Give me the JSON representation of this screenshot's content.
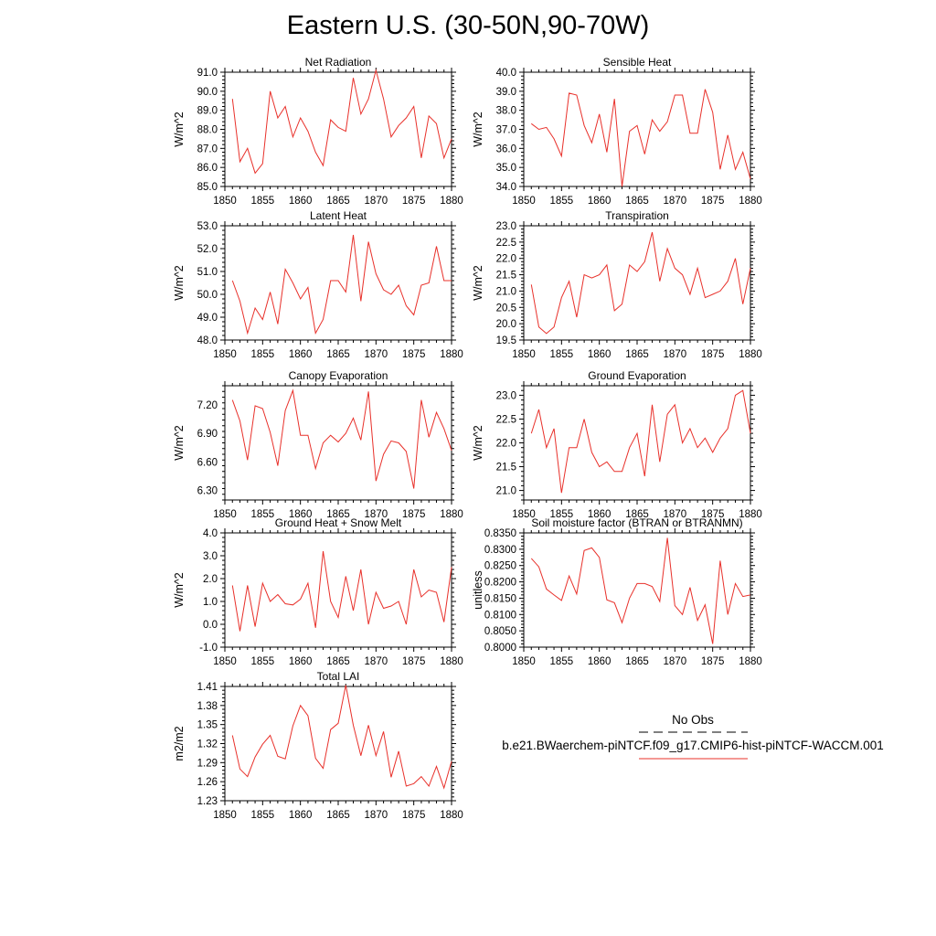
{
  "title": "Eastern U.S. (30-50N,90-70W)",
  "legend": {
    "obs_label": "No Obs",
    "model_label": "b.e21.BWaerchem-piNTCF.f09_g17.CMIP6-hist-piNTCF-WACCM.001",
    "model_color": "#e8302a",
    "obs_color": "#000000"
  },
  "chart_data": [
    {
      "type": "line",
      "title": "Net Radiation",
      "ylabel": "W/m^2",
      "x": [
        1851,
        1852,
        1853,
        1854,
        1855,
        1856,
        1857,
        1858,
        1859,
        1860,
        1861,
        1862,
        1863,
        1864,
        1865,
        1866,
        1867,
        1868,
        1869,
        1870,
        1871,
        1872,
        1873,
        1874,
        1875,
        1876,
        1877,
        1878,
        1879,
        1880
      ],
      "xlim": [
        1850,
        1880
      ],
      "xticks": [
        1850,
        1855,
        1860,
        1865,
        1870,
        1875,
        1880
      ],
      "ylim": [
        85.0,
        91.0
      ],
      "yticks": [
        "85.0",
        "86.0",
        "87.0",
        "88.0",
        "89.0",
        "90.0",
        "91.0"
      ],
      "series": [
        {
          "values": [
            89.6,
            86.3,
            87.0,
            85.7,
            86.2,
            90.0,
            88.6,
            89.2,
            87.6,
            88.6,
            87.9,
            86.8,
            86.1,
            88.5,
            88.1,
            87.9,
            90.7,
            88.8,
            89.6,
            91.1,
            89.6,
            87.6,
            88.2,
            88.6,
            89.2,
            86.5,
            88.7,
            88.3,
            86.5,
            87.5
          ]
        }
      ]
    },
    {
      "type": "line",
      "title": "Sensible Heat",
      "ylabel": "W/m^2",
      "x": [
        1851,
        1852,
        1853,
        1854,
        1855,
        1856,
        1857,
        1858,
        1859,
        1860,
        1861,
        1862,
        1863,
        1864,
        1865,
        1866,
        1867,
        1868,
        1869,
        1870,
        1871,
        1872,
        1873,
        1874,
        1875,
        1876,
        1877,
        1878,
        1879,
        1880
      ],
      "xlim": [
        1850,
        1880
      ],
      "xticks": [
        1850,
        1855,
        1860,
        1865,
        1870,
        1875,
        1880
      ],
      "ylim": [
        34.0,
        40.0
      ],
      "yticks": [
        "34.0",
        "35.0",
        "36.0",
        "37.0",
        "38.0",
        "39.0",
        "40.0"
      ],
      "series": [
        {
          "values": [
            37.3,
            37.0,
            37.1,
            36.5,
            35.6,
            38.9,
            38.8,
            37.2,
            36.3,
            37.8,
            35.8,
            38.6,
            34.0,
            36.9,
            37.2,
            35.7,
            37.5,
            36.9,
            37.4,
            38.8,
            38.8,
            36.8,
            36.8,
            39.1,
            37.9,
            34.9,
            36.7,
            34.9,
            35.8,
            34.4
          ]
        }
      ]
    },
    {
      "type": "line",
      "title": "Latent Heat",
      "ylabel": "W/m^2",
      "x": [
        1851,
        1852,
        1853,
        1854,
        1855,
        1856,
        1857,
        1858,
        1859,
        1860,
        1861,
        1862,
        1863,
        1864,
        1865,
        1866,
        1867,
        1868,
        1869,
        1870,
        1871,
        1872,
        1873,
        1874,
        1875,
        1876,
        1877,
        1878,
        1879,
        1880
      ],
      "xlim": [
        1850,
        1880
      ],
      "xticks": [
        1850,
        1855,
        1860,
        1865,
        1870,
        1875,
        1880
      ],
      "ylim": [
        48.0,
        53.0
      ],
      "yticks": [
        "48.0",
        "49.0",
        "50.0",
        "51.0",
        "52.0",
        "53.0"
      ],
      "series": [
        {
          "values": [
            50.6,
            49.7,
            48.3,
            49.4,
            48.9,
            50.1,
            48.7,
            51.1,
            50.5,
            49.8,
            50.3,
            48.3,
            48.9,
            50.6,
            50.6,
            50.1,
            52.6,
            49.7,
            52.3,
            50.9,
            50.2,
            50.0,
            50.4,
            49.5,
            49.1,
            50.4,
            50.5,
            52.1,
            50.6,
            50.6
          ]
        }
      ]
    },
    {
      "type": "line",
      "title": "Transpiration",
      "ylabel": "W/m^2",
      "x": [
        1851,
        1852,
        1853,
        1854,
        1855,
        1856,
        1857,
        1858,
        1859,
        1860,
        1861,
        1862,
        1863,
        1864,
        1865,
        1866,
        1867,
        1868,
        1869,
        1870,
        1871,
        1872,
        1873,
        1874,
        1875,
        1876,
        1877,
        1878,
        1879,
        1880
      ],
      "xlim": [
        1850,
        1880
      ],
      "xticks": [
        1850,
        1855,
        1860,
        1865,
        1870,
        1875,
        1880
      ],
      "ylim": [
        19.5,
        23.0
      ],
      "yticks": [
        "19.5",
        "20.0",
        "20.5",
        "21.0",
        "21.5",
        "22.0",
        "22.5",
        "23.0"
      ],
      "series": [
        {
          "values": [
            21.2,
            19.9,
            19.7,
            19.9,
            20.8,
            21.3,
            20.2,
            21.5,
            21.4,
            21.5,
            21.8,
            20.4,
            20.6,
            21.8,
            21.6,
            21.9,
            22.8,
            21.3,
            22.3,
            21.7,
            21.5,
            20.9,
            21.7,
            20.8,
            20.9,
            21.0,
            21.3,
            22.0,
            20.6,
            21.7
          ]
        }
      ]
    },
    {
      "type": "line",
      "title": "Canopy Evaporation",
      "ylabel": "W/m^2",
      "x": [
        1851,
        1852,
        1853,
        1854,
        1855,
        1856,
        1857,
        1858,
        1859,
        1860,
        1861,
        1862,
        1863,
        1864,
        1865,
        1866,
        1867,
        1868,
        1869,
        1870,
        1871,
        1872,
        1873,
        1874,
        1875,
        1876,
        1877,
        1878,
        1879,
        1880
      ],
      "xlim": [
        1850,
        1880
      ],
      "xticks": [
        1850,
        1855,
        1860,
        1865,
        1870,
        1875,
        1880
      ],
      "ylim": [
        6.2,
        7.4
      ],
      "yticks": [
        "6.30",
        "6.60",
        "6.90",
        "7.20"
      ],
      "series": [
        {
          "values": [
            7.25,
            7.03,
            6.62,
            7.19,
            7.16,
            6.91,
            6.56,
            7.14,
            7.35,
            6.88,
            6.88,
            6.53,
            6.8,
            6.88,
            6.81,
            6.9,
            7.06,
            6.83,
            7.34,
            6.4,
            6.68,
            6.82,
            6.8,
            6.71,
            6.32,
            7.25,
            6.86,
            7.12,
            6.95,
            6.72
          ]
        }
      ]
    },
    {
      "type": "line",
      "title": "Ground Evaporation",
      "ylabel": "W/m^2",
      "x": [
        1851,
        1852,
        1853,
        1854,
        1855,
        1856,
        1857,
        1858,
        1859,
        1860,
        1861,
        1862,
        1863,
        1864,
        1865,
        1866,
        1867,
        1868,
        1869,
        1870,
        1871,
        1872,
        1873,
        1874,
        1875,
        1876,
        1877,
        1878,
        1879,
        1880
      ],
      "xlim": [
        1850,
        1880
      ],
      "xticks": [
        1850,
        1855,
        1860,
        1865,
        1870,
        1875,
        1880
      ],
      "ylim": [
        20.8,
        23.2
      ],
      "yticks": [
        "21.0",
        "21.5",
        "22.0",
        "22.5",
        "23.0"
      ],
      "series": [
        {
          "values": [
            22.2,
            22.7,
            21.9,
            22.3,
            20.95,
            21.9,
            21.9,
            22.5,
            21.8,
            21.5,
            21.6,
            21.4,
            21.4,
            21.9,
            22.2,
            21.3,
            22.8,
            21.6,
            22.6,
            22.8,
            22.0,
            22.3,
            21.9,
            22.1,
            21.8,
            22.1,
            22.3,
            23.0,
            23.1,
            22.2
          ]
        }
      ]
    },
    {
      "type": "line",
      "title": "Ground Heat + Snow Melt",
      "ylabel": "W/m^2",
      "x": [
        1851,
        1852,
        1853,
        1854,
        1855,
        1856,
        1857,
        1858,
        1859,
        1860,
        1861,
        1862,
        1863,
        1864,
        1865,
        1866,
        1867,
        1868,
        1869,
        1870,
        1871,
        1872,
        1873,
        1874,
        1875,
        1876,
        1877,
        1878,
        1879,
        1880
      ],
      "xlim": [
        1850,
        1880
      ],
      "xticks": [
        1850,
        1855,
        1860,
        1865,
        1870,
        1875,
        1880
      ],
      "ylim": [
        -1.0,
        4.0
      ],
      "yticks": [
        "-1.0",
        "0.0",
        "1.0",
        "2.0",
        "3.0",
        "4.0"
      ],
      "series": [
        {
          "values": [
            1.7,
            -0.3,
            1.7,
            -0.1,
            1.8,
            1.0,
            1.3,
            0.9,
            0.85,
            1.1,
            1.8,
            -0.15,
            3.2,
            1.0,
            0.3,
            2.1,
            0.6,
            2.4,
            0.0,
            1.4,
            0.7,
            0.8,
            1.0,
            0.0,
            2.4,
            1.2,
            1.5,
            1.4,
            0.1,
            2.5
          ]
        }
      ]
    },
    {
      "type": "line",
      "title": "Soil moisture factor (BTRAN or BTRANMN)",
      "ylabel": "unitless",
      "x": [
        1851,
        1852,
        1853,
        1854,
        1855,
        1856,
        1857,
        1858,
        1859,
        1860,
        1861,
        1862,
        1863,
        1864,
        1865,
        1866,
        1867,
        1868,
        1869,
        1870,
        1871,
        1872,
        1873,
        1874,
        1875,
        1876,
        1877,
        1878,
        1879,
        1880
      ],
      "xlim": [
        1850,
        1880
      ],
      "xticks": [
        1850,
        1855,
        1860,
        1865,
        1870,
        1875,
        1880
      ],
      "ylim": [
        0.8,
        0.835
      ],
      "yticks": [
        "0.8000",
        "0.8050",
        "0.8100",
        "0.8150",
        "0.8200",
        "0.8250",
        "0.8300",
        "0.8350"
      ],
      "series": [
        {
          "values": [
            0.8272,
            0.8246,
            0.8178,
            0.816,
            0.8143,
            0.8218,
            0.8163,
            0.8296,
            0.8304,
            0.8275,
            0.8145,
            0.8136,
            0.8075,
            0.815,
            0.8195,
            0.8195,
            0.8186,
            0.814,
            0.8335,
            0.8127,
            0.81,
            0.8183,
            0.8082,
            0.813,
            0.801,
            0.8265,
            0.81,
            0.8195,
            0.8155,
            0.816
          ]
        }
      ]
    },
    {
      "type": "line",
      "title": "Total LAI",
      "ylabel": "m2/m2",
      "x": [
        1851,
        1852,
        1853,
        1854,
        1855,
        1856,
        1857,
        1858,
        1859,
        1860,
        1861,
        1862,
        1863,
        1864,
        1865,
        1866,
        1867,
        1868,
        1869,
        1870,
        1871,
        1872,
        1873,
        1874,
        1875,
        1876,
        1877,
        1878,
        1879,
        1880
      ],
      "xlim": [
        1850,
        1880
      ],
      "xticks": [
        1850,
        1855,
        1860,
        1865,
        1870,
        1875,
        1880
      ],
      "ylim": [
        1.23,
        1.41
      ],
      "yticks": [
        "1.23",
        "1.26",
        "1.29",
        "1.32",
        "1.35",
        "1.38",
        "1.41"
      ],
      "series": [
        {
          "values": [
            1.333,
            1.28,
            1.268,
            1.299,
            1.319,
            1.333,
            1.3,
            1.296,
            1.348,
            1.38,
            1.364,
            1.297,
            1.281,
            1.342,
            1.352,
            1.412,
            1.349,
            1.301,
            1.349,
            1.301,
            1.339,
            1.267,
            1.308,
            1.253,
            1.257,
            1.268,
            1.253,
            1.284,
            1.25,
            1.292
          ]
        }
      ]
    }
  ]
}
